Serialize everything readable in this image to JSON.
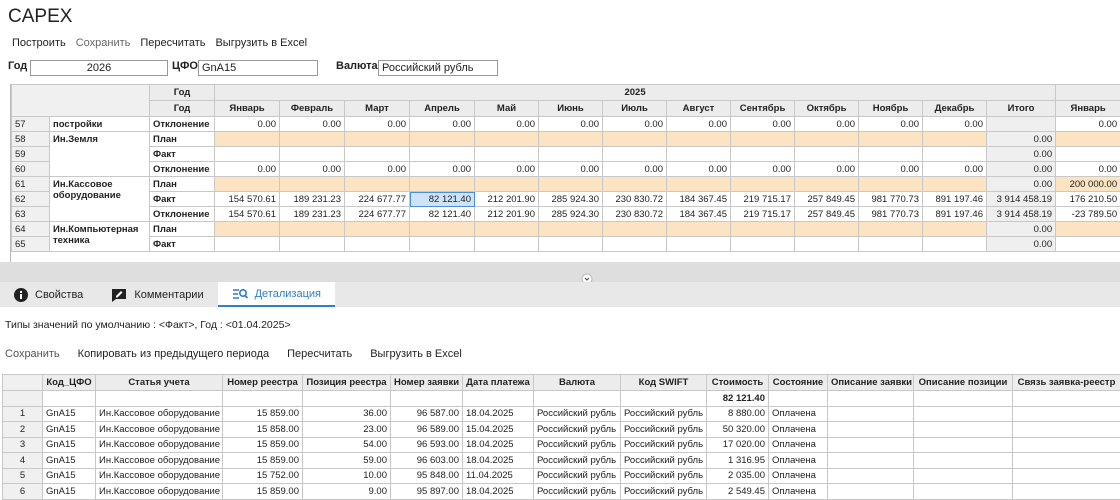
{
  "header": {
    "title": "CAPEX"
  },
  "toolbar": [
    "Построить",
    "Сохранить",
    "Пересчитать",
    "Выгрузить в Excel"
  ],
  "filters": {
    "year_label": "Год",
    "year": "2026",
    "cfo_label": "ЦФО",
    "cfo": "GnA15",
    "currency_label": "Валюта",
    "currency": "Российский рубль"
  },
  "top_table": {
    "year_label": "Год",
    "year": "2025",
    "row_label": "Год",
    "columns": [
      "Январь",
      "Февраль",
      "Март",
      "Апрель",
      "Май",
      "Июнь",
      "Июль",
      "Август",
      "Сентябрь",
      "Октябрь",
      "Ноябрь",
      "Декабрь",
      "Итого",
      "Январь"
    ],
    "groups": [
      {
        "name": "постройки",
        "rows": [
          {
            "num": 57,
            "type": "Отклонение",
            "values": [
              "0.00",
              "0.00",
              "0.00",
              "0.00",
              "0.00",
              "0.00",
              "0.00",
              "0.00",
              "0.00",
              "0.00",
              "0.00",
              "0.00"
            ],
            "next": "0.00"
          }
        ]
      },
      {
        "name": "Ин.Земля",
        "rows": [
          {
            "num": 58,
            "type": "План",
            "plan": true,
            "total": "0.00"
          },
          {
            "num": 59,
            "type": "Факт",
            "total": "0.00"
          },
          {
            "num": 60,
            "type": "Отклонение",
            "values": [
              "0.00",
              "0.00",
              "0.00",
              "0.00",
              "0.00",
              "0.00",
              "0.00",
              "0.00",
              "0.00",
              "0.00",
              "0.00",
              "0.00"
            ],
            "total": "0.00",
            "next": "0.00"
          }
        ]
      },
      {
        "name": "Ин.Кассовое оборудование",
        "rows": [
          {
            "num": 61,
            "type": "План",
            "plan": true,
            "total": "0.00",
            "next": "200 000.00"
          },
          {
            "num": 62,
            "type": "Факт",
            "values": [
              "154 570.61",
              "189 231.23",
              "224 677.77",
              "82 121.40",
              "212 201.90",
              "285 924.30",
              "230 830.72",
              "184 367.45",
              "219 715.17",
              "257 849.45",
              "981 770.73",
              "891 197.46"
            ],
            "total": "3 914 458.19",
            "next": "176 210.50"
          },
          {
            "num": 63,
            "type": "Отклонение",
            "values": [
              "154 570.61",
              "189 231.23",
              "224 677.77",
              "82 121.40",
              "212 201.90",
              "285 924.30",
              "230 830.72",
              "184 367.45",
              "219 715.17",
              "257 849.45",
              "981 770.73",
              "891 197.46"
            ],
            "total": "3 914 458.19",
            "next": "-23 789.50"
          }
        ]
      },
      {
        "name": "Ин.Компьютерная техника",
        "rows": [
          {
            "num": 64,
            "type": "План",
            "plan": true,
            "total": "0.00"
          },
          {
            "num": 65,
            "type": "Факт",
            "total": "0.00"
          }
        ]
      }
    ]
  },
  "tabs": [
    "Свойства",
    "Комментарии",
    "Детализация"
  ],
  "info": "Типы значений по умолчанию : <Факт>,  Год : <01.04.2025>",
  "detail_toolbar": [
    "Сохранить",
    "Копировать из предыдущего периода",
    "Пересчитать",
    "Выгрузить в Excel"
  ],
  "detail_table": {
    "columns": [
      "Код_ЦФО",
      "Статья учета",
      "Номер реестра",
      "Позиция реестра",
      "Номер заявки",
      "Дата платежа",
      "Валюта",
      "Код SWIFT",
      "Стоимость",
      "Состояние",
      "Описание заявки",
      "Описание позиции",
      "Связь заявка-реестр"
    ],
    "total": "82 121.40",
    "rows": [
      [
        1,
        "GnA15",
        "Ин.Кассовое оборудование",
        "15 859.00",
        "36.00",
        "96 587.00",
        "18.04.2025",
        "Российский рубль",
        "Российский рубль",
        "8 880.00",
        "Оплачена"
      ],
      [
        2,
        "GnA15",
        "Ин.Кассовое оборудование",
        "15 858.00",
        "23.00",
        "96 589.00",
        "15.04.2025",
        "Российский рубль",
        "Российский рубль",
        "50 320.00",
        "Оплачена"
      ],
      [
        3,
        "GnA15",
        "Ин.Кассовое оборудование",
        "15 859.00",
        "54.00",
        "96 593.00",
        "18.04.2025",
        "Российский рубль",
        "Российский рубль",
        "17 020.00",
        "Оплачена"
      ],
      [
        4,
        "GnA15",
        "Ин.Кассовое оборудование",
        "15 859.00",
        "59.00",
        "96 603.00",
        "18.04.2025",
        "Российский рубль",
        "Российский рубль",
        "1 316.95",
        "Оплачена"
      ],
      [
        5,
        "GnA15",
        "Ин.Кассовое оборудование",
        "15 752.00",
        "10.00",
        "95 848.00",
        "11.04.2025",
        "Российский рубль",
        "Российский рубль",
        "2 035.00",
        "Оплачена"
      ],
      [
        6,
        "GnA15",
        "Ин.Кассовое оборудование",
        "15 859.00",
        "9.00",
        "95 897.00",
        "18.04.2025",
        "Российский рубль",
        "Российский рубль",
        "2 549.45",
        "Оплачена"
      ]
    ]
  }
}
